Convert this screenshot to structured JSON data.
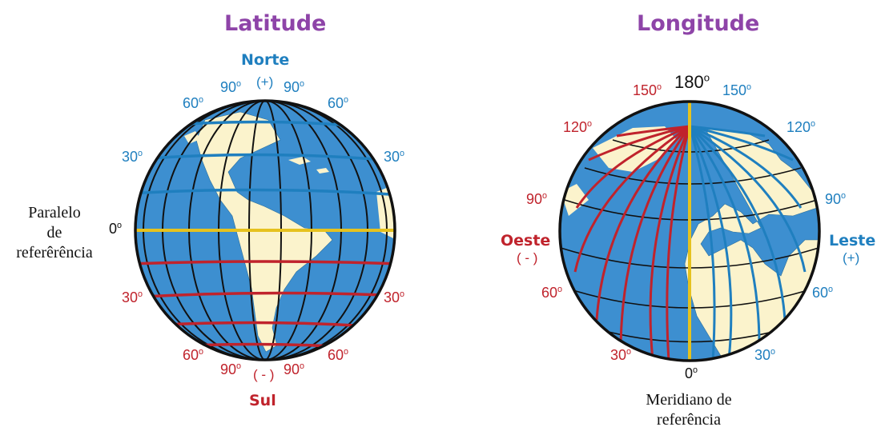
{
  "latitude": {
    "title": "Latitude",
    "north": "Norte",
    "north_sign": "(+)",
    "south": "Sul",
    "south_sign": "( - )",
    "zero": "0",
    "reference_line1": "Paralelo",
    "reference_line2": "de",
    "reference_line3": "referêrência",
    "n_90_left": "90",
    "n_90_right": "90",
    "n_60_left": "60",
    "n_60_right": "60",
    "n_30_left": "30",
    "n_30_right": "30",
    "s_30_left": "30",
    "s_30_right": "30",
    "s_60_left": "60",
    "s_60_right": "60",
    "s_90_left": "90",
    "s_90_right": "90"
  },
  "longitude": {
    "title": "Longitude",
    "top_180": "180",
    "zero": "0",
    "west": "Oeste",
    "west_sign": "( - )",
    "east": "Leste",
    "east_sign": "(+)",
    "reference_line1": "Meridiano de",
    "reference_line2": "referência",
    "w_150": "150",
    "w_120": "120",
    "w_90": "90",
    "w_60": "60",
    "w_30": "30",
    "e_150": "150",
    "e_120": "120",
    "e_90": "90",
    "e_60": "60",
    "e_30": "30"
  },
  "colors": {
    "title": "#8e44a8",
    "north_east": "#1f7fbf",
    "south_west": "#c0232c",
    "reference": "#e6c21e",
    "ocean": "#3d8fd0",
    "land": "#fbf3cc"
  }
}
